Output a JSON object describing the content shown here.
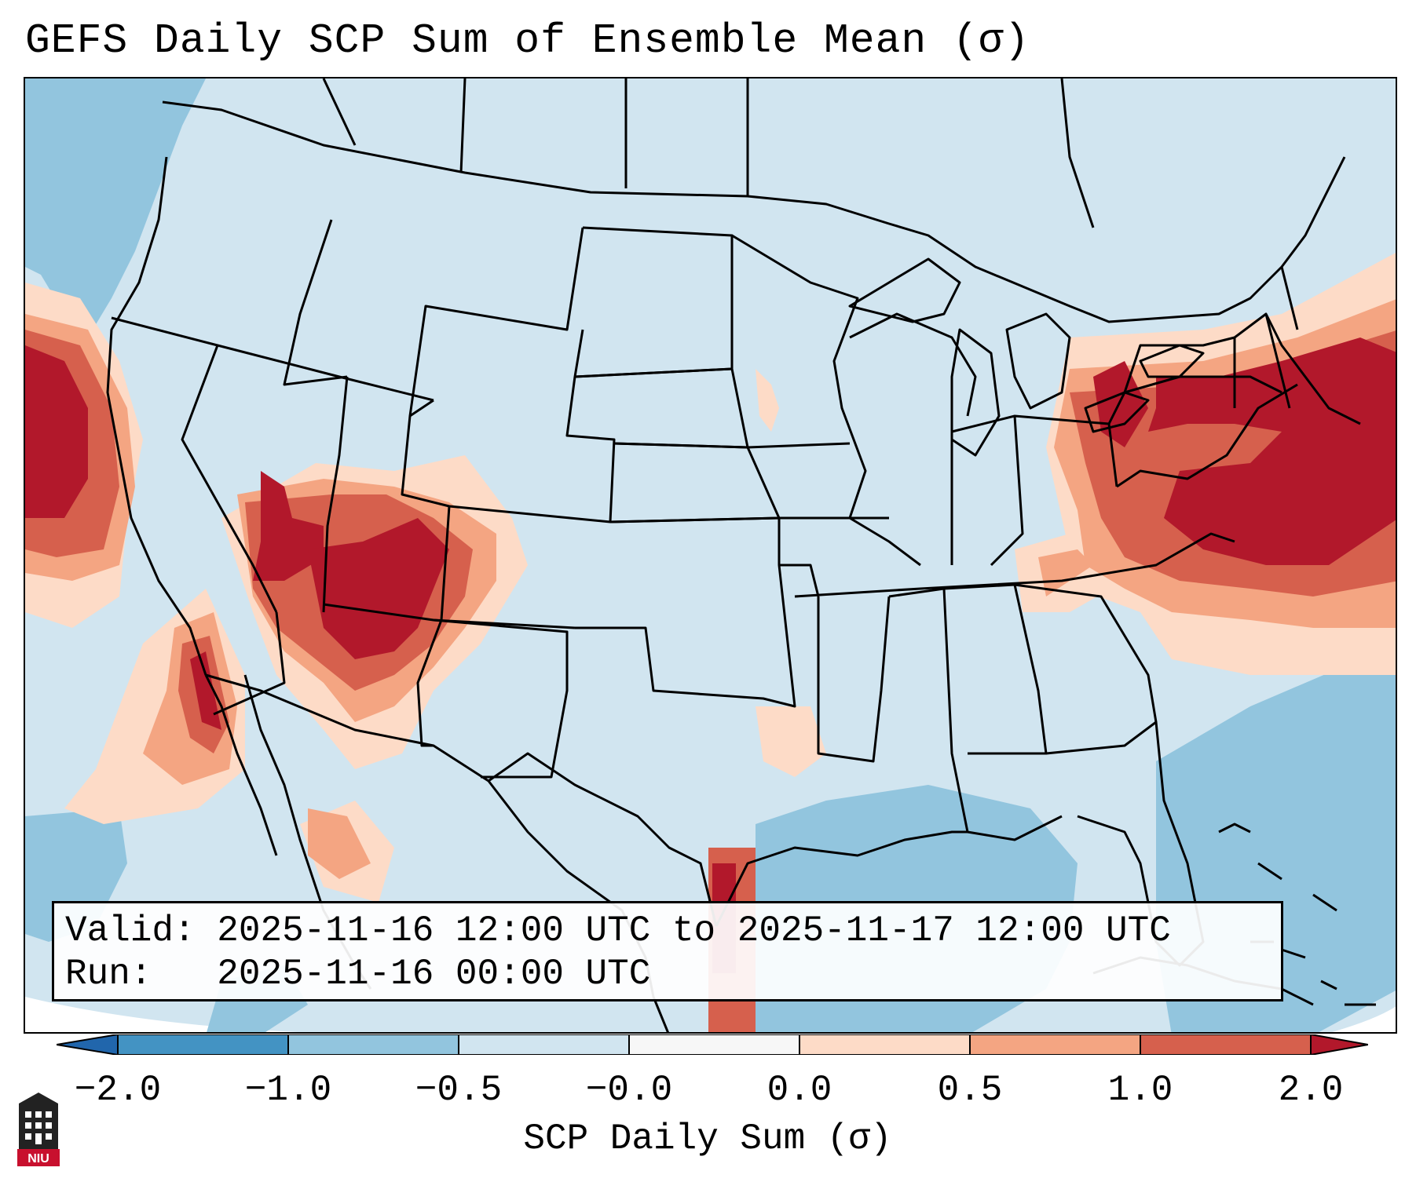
{
  "title": "GEFS Daily SCP Sum of Ensemble Mean (σ)",
  "info_box": {
    "valid_label": "Valid:",
    "valid_value": "2025-11-16 12:00 UTC to 2025-11-17 12:00 UTC",
    "run_label": "Run:",
    "run_value": "2025-11-16 00:00 UTC"
  },
  "colorbar": {
    "label": "SCP Daily Sum (σ)",
    "ticks": [
      "−2.0",
      "−1.0",
      "−0.5",
      "−0.0",
      "0.0",
      "0.5",
      "1.0",
      "2.0"
    ],
    "colors": {
      "below_min": "#2166ac",
      "bin_m2_m1": "#4393c3",
      "bin_m1_m05": "#92c5de",
      "bin_m05_0": "#d1e5f0",
      "bin_0_0": "#f7f7f7",
      "bin_0_05": "#fddbc7",
      "bin_05_1": "#f4a582",
      "bin_1_2": "#d6604d",
      "above_max": "#b2182b"
    }
  },
  "logo": {
    "text": "NIU",
    "icon": "university-tower-icon"
  }
}
